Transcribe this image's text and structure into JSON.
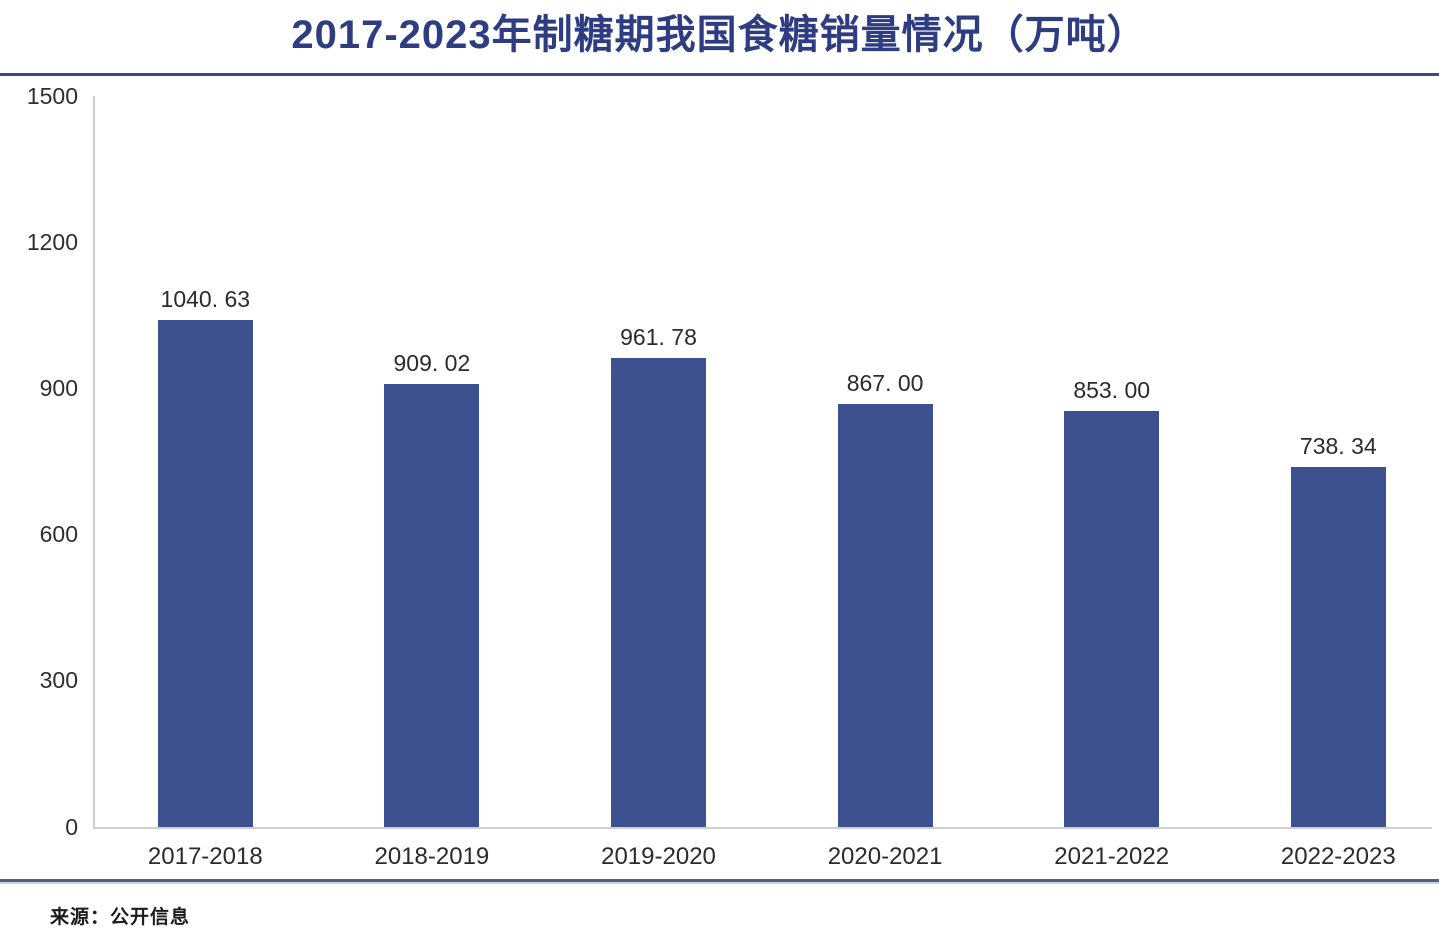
{
  "chart_data": {
    "type": "bar",
    "title": "2017-2023年制糖期我国食糖销量情况（万吨）",
    "categories": [
      "2017-2018",
      "2018-2019",
      "2019-2020",
      "2020-2021",
      "2021-2022",
      "2022-2023"
    ],
    "values": [
      1040.63,
      909.02,
      961.78,
      867.0,
      853.0,
      738.34
    ],
    "value_labels": [
      "1040. 63",
      "909. 02",
      "961. 78",
      "867. 00",
      "853. 00",
      "738. 34"
    ],
    "xlabel": "",
    "ylabel": "",
    "ylim": [
      0,
      1500
    ],
    "yticks": [
      0,
      300,
      600,
      900,
      1200,
      1500
    ],
    "grid": false,
    "legend": null,
    "bar_color": "#3d508f"
  },
  "source_note": "来源：公开信息",
  "colors": {
    "title": "#2e3d82",
    "title_rule": "#3a4a8c",
    "axis_line": "#cfcfcf",
    "tick_label": "#2f2f2f",
    "value_label": "#2b2b2b",
    "bottom_rule_dark": "#566179",
    "bottom_rule_light": "#c8d2e8",
    "background": "#ffffff"
  }
}
